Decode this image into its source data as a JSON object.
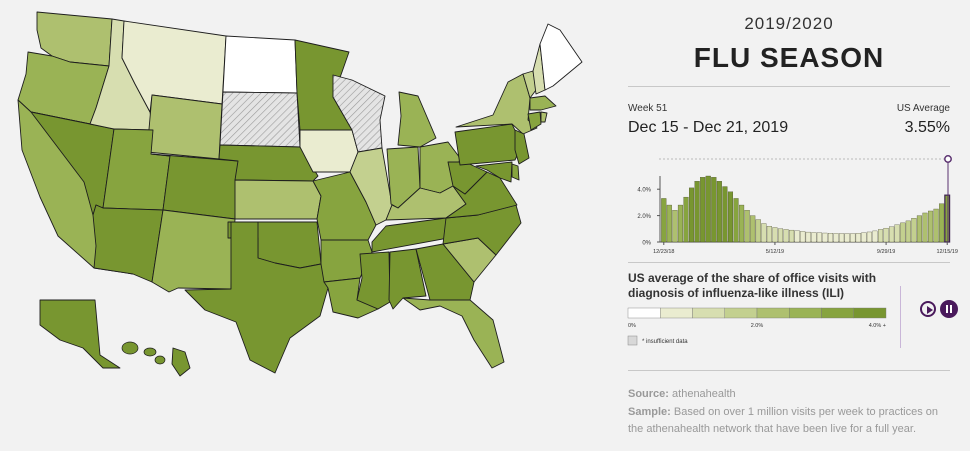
{
  "header": {
    "season_year": "2019/2020",
    "title": "FLU SEASON"
  },
  "week": {
    "label": "Week 51",
    "range": "Dec 15 - Dec 21, 2019",
    "avg_label": "US Average",
    "avg_value": "3.55%"
  },
  "description": "US average of the share of office visits with diagnosis of influenza-like illness (ILI)",
  "legend": {
    "ticks": [
      "0%",
      "2.0%",
      "4.0% +"
    ],
    "insufficient_label": "* insufficient data",
    "colors": [
      "#ffffff",
      "#eaecd0",
      "#d7deb0",
      "#c3d08f",
      "#aec06f",
      "#9ab355",
      "#87a43f",
      "#789630"
    ],
    "insufficient_color": "#d8d8d8"
  },
  "controls": {
    "play": "play",
    "pause": "pause"
  },
  "source": {
    "source_label": "Source:",
    "source_text": "athenahealth",
    "sample_label": "Sample:",
    "sample_text": "Based on over 1 million visits per week to practices on the athenahealth network that have been live for a full year."
  },
  "chart_data": {
    "type": "bar",
    "title": "",
    "xlabel": "",
    "ylabel": "",
    "x_tick_labels": [
      "12/23/18",
      "5/12/19",
      "9/29/19",
      "12/15/19"
    ],
    "x_tick_indices": [
      0,
      20,
      40,
      51
    ],
    "y_ticks": [
      "0%",
      "2.0%",
      "4.0%"
    ],
    "ylim": [
      0,
      5.0
    ],
    "grid": false,
    "values": [
      3.3,
      2.8,
      2.4,
      2.8,
      3.4,
      4.1,
      4.6,
      4.9,
      5.0,
      4.9,
      4.6,
      4.2,
      3.8,
      3.3,
      2.8,
      2.4,
      2.0,
      1.7,
      1.4,
      1.2,
      1.1,
      1.0,
      0.95,
      0.9,
      0.85,
      0.8,
      0.75,
      0.72,
      0.7,
      0.68,
      0.66,
      0.65,
      0.64,
      0.64,
      0.64,
      0.66,
      0.7,
      0.76,
      0.84,
      0.95,
      1.05,
      1.15,
      1.3,
      1.45,
      1.6,
      1.8,
      2.0,
      2.2,
      2.35,
      2.5,
      2.9,
      3.55
    ],
    "current_index": 51
  },
  "map_data": {
    "states": {
      "WA": 4,
      "OR": 5,
      "CA": 5,
      "NV": 7,
      "ID": 2,
      "MT": 1,
      "WY": 4,
      "UT": 6,
      "AZ": 7,
      "CO": 7,
      "NM": 5,
      "ND": 0,
      "SD": -1,
      "NE": 7,
      "KS": 4,
      "OK": 7,
      "TX": 7,
      "MN": 7,
      "IA": 1,
      "MO": 6,
      "AR": 6,
      "LA": 6,
      "WI": -1,
      "IL": 3,
      "IN": 5,
      "MI": 5,
      "OH": 5,
      "KY": 4,
      "TN": 7,
      "MS": 7,
      "AL": 7,
      "GA": 7,
      "FL": 5,
      "SC": 4,
      "NC": 7,
      "VA": 7,
      "WV": 7,
      "PA": 7,
      "NY": 4,
      "VT": 3,
      "NH": 2,
      "ME": 0,
      "MA": 5,
      "CT": 6,
      "RI": 4,
      "NJ": 7,
      "DE": 6,
      "MD": 7,
      "AK": 7,
      "HI": 7
    }
  }
}
